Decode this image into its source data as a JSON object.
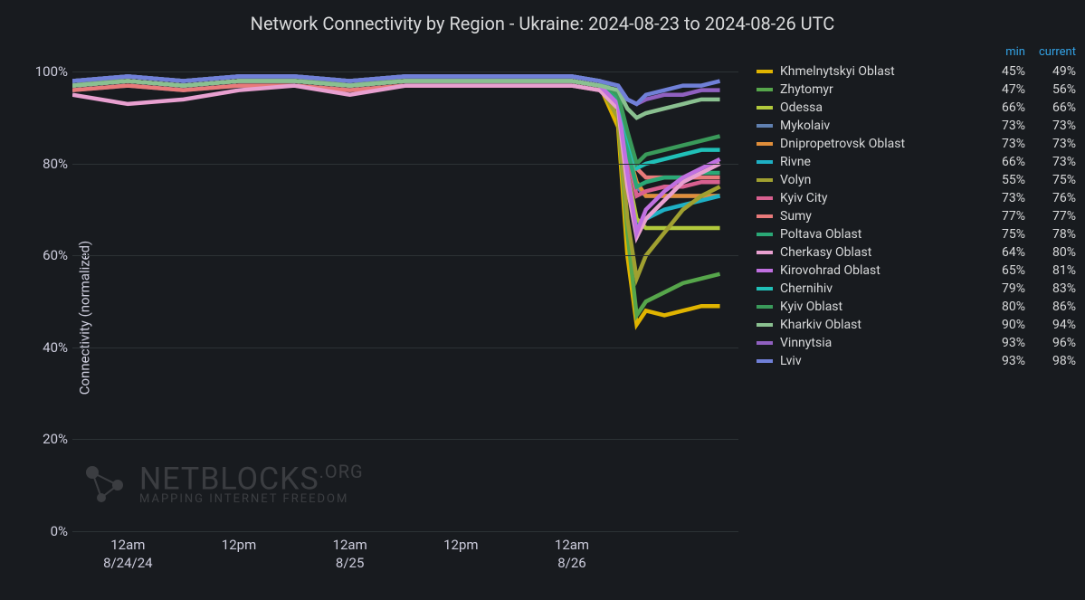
{
  "title": "Network Connectivity by Region - Ukraine: 2024-08-23 to 2024-08-26 UTC",
  "ylabel": "Connectivity (normalized)",
  "background_color": "#181b1f",
  "text_color": "#ccccdc",
  "grid_color": "#2c3235",
  "header_color": "#33a2e5",
  "title_fontsize": 20,
  "tick_fontsize": 15,
  "legend_fontsize": 14,
  "line_width": 1.5,
  "chart": {
    "type": "line",
    "ylim": [
      0,
      105
    ],
    "yticks": [
      0,
      20,
      40,
      60,
      80,
      100
    ],
    "ytick_labels": [
      "0%",
      "20%",
      "40%",
      "60%",
      "80%",
      "100%"
    ],
    "xdomain": [
      0,
      72
    ],
    "xticks": [
      {
        "t": 6,
        "label": "12am",
        "date": "8/24/24"
      },
      {
        "t": 18,
        "label": "12pm",
        "date": ""
      },
      {
        "t": 30,
        "label": "12am",
        "date": "8/25"
      },
      {
        "t": 42,
        "label": "12pm",
        "date": ""
      },
      {
        "t": 54,
        "label": "12am",
        "date": "8/26"
      }
    ]
  },
  "legend_headers": {
    "min": "min",
    "current": "current"
  },
  "watermark": {
    "main": "NETBLOCKS",
    "suffix": ".ORG",
    "sub": "MAPPING INTERNET FREEDOM"
  },
  "series": [
    {
      "name": "Khmelnytskyi Oblast",
      "color": "#e0b400",
      "min": "45%",
      "current": "49%",
      "points": [
        [
          0,
          97
        ],
        [
          6,
          98
        ],
        [
          12,
          97
        ],
        [
          18,
          98
        ],
        [
          24,
          98
        ],
        [
          30,
          97
        ],
        [
          36,
          98
        ],
        [
          42,
          98
        ],
        [
          48,
          98
        ],
        [
          54,
          98
        ],
        [
          57,
          97
        ],
        [
          59,
          88
        ],
        [
          60,
          60
        ],
        [
          61,
          45
        ],
        [
          62,
          48
        ],
        [
          64,
          47
        ],
        [
          66,
          48
        ],
        [
          68,
          49
        ],
        [
          70,
          49
        ]
      ]
    },
    {
      "name": "Zhytomyr",
      "color": "#56a64b",
      "min": "47%",
      "current": "56%",
      "points": [
        [
          0,
          98
        ],
        [
          6,
          98
        ],
        [
          12,
          97
        ],
        [
          18,
          98
        ],
        [
          24,
          98
        ],
        [
          30,
          98
        ],
        [
          36,
          98
        ],
        [
          42,
          98
        ],
        [
          48,
          98
        ],
        [
          54,
          98
        ],
        [
          57,
          97
        ],
        [
          59,
          90
        ],
        [
          60,
          65
        ],
        [
          61,
          47
        ],
        [
          62,
          50
        ],
        [
          64,
          52
        ],
        [
          66,
          54
        ],
        [
          68,
          55
        ],
        [
          70,
          56
        ]
      ]
    },
    {
      "name": "Odessa",
      "color": "#b2c93c",
      "min": "66%",
      "current": "66%",
      "points": [
        [
          0,
          97
        ],
        [
          6,
          98
        ],
        [
          12,
          97
        ],
        [
          18,
          98
        ],
        [
          24,
          98
        ],
        [
          30,
          97
        ],
        [
          36,
          98
        ],
        [
          42,
          98
        ],
        [
          48,
          98
        ],
        [
          54,
          98
        ],
        [
          57,
          97
        ],
        [
          59,
          92
        ],
        [
          60,
          78
        ],
        [
          61,
          68
        ],
        [
          62,
          66
        ],
        [
          64,
          66
        ],
        [
          66,
          66
        ],
        [
          68,
          66
        ],
        [
          70,
          66
        ]
      ]
    },
    {
      "name": "Mykolaiv",
      "color": "#6080b0",
      "min": "73%",
      "current": "73%",
      "points": [
        [
          0,
          96
        ],
        [
          6,
          97
        ],
        [
          12,
          96
        ],
        [
          18,
          97
        ],
        [
          24,
          97
        ],
        [
          30,
          96
        ],
        [
          36,
          97
        ],
        [
          42,
          97
        ],
        [
          48,
          97
        ],
        [
          54,
          97
        ],
        [
          57,
          96
        ],
        [
          59,
          93
        ],
        [
          60,
          82
        ],
        [
          61,
          75
        ],
        [
          62,
          73
        ],
        [
          64,
          73
        ],
        [
          66,
          73
        ],
        [
          68,
          73
        ],
        [
          70,
          73
        ]
      ]
    },
    {
      "name": "Dnipropetrovsk Oblast",
      "color": "#e08e3a",
      "min": "73%",
      "current": "73%",
      "points": [
        [
          0,
          97
        ],
        [
          6,
          98
        ],
        [
          12,
          97
        ],
        [
          18,
          98
        ],
        [
          24,
          98
        ],
        [
          30,
          97
        ],
        [
          36,
          98
        ],
        [
          42,
          98
        ],
        [
          48,
          98
        ],
        [
          54,
          98
        ],
        [
          57,
          97
        ],
        [
          59,
          94
        ],
        [
          60,
          83
        ],
        [
          61,
          76
        ],
        [
          62,
          73
        ],
        [
          64,
          73
        ],
        [
          66,
          73
        ],
        [
          68,
          73
        ],
        [
          70,
          73
        ]
      ]
    },
    {
      "name": "Rivne",
      "color": "#1eb0c4",
      "min": "66%",
      "current": "73%",
      "points": [
        [
          0,
          98
        ],
        [
          6,
          99
        ],
        [
          12,
          98
        ],
        [
          18,
          99
        ],
        [
          24,
          99
        ],
        [
          30,
          98
        ],
        [
          36,
          99
        ],
        [
          42,
          99
        ],
        [
          48,
          99
        ],
        [
          54,
          99
        ],
        [
          57,
          98
        ],
        [
          59,
          93
        ],
        [
          60,
          75
        ],
        [
          61,
          66
        ],
        [
          62,
          68
        ],
        [
          64,
          70
        ],
        [
          66,
          71
        ],
        [
          68,
          72
        ],
        [
          70,
          73
        ]
      ]
    },
    {
      "name": "Volyn",
      "color": "#a0a030",
      "min": "55%",
      "current": "75%",
      "points": [
        [
          0,
          97
        ],
        [
          6,
          98
        ],
        [
          12,
          97
        ],
        [
          18,
          98
        ],
        [
          24,
          98
        ],
        [
          30,
          97
        ],
        [
          36,
          98
        ],
        [
          42,
          98
        ],
        [
          48,
          98
        ],
        [
          54,
          98
        ],
        [
          57,
          97
        ],
        [
          59,
          90
        ],
        [
          60,
          68
        ],
        [
          61,
          55
        ],
        [
          62,
          60
        ],
        [
          64,
          65
        ],
        [
          66,
          70
        ],
        [
          68,
          73
        ],
        [
          70,
          75
        ]
      ]
    },
    {
      "name": "Kyiv City",
      "color": "#d86090",
      "min": "73%",
      "current": "76%",
      "points": [
        [
          0,
          98
        ],
        [
          6,
          99
        ],
        [
          12,
          98
        ],
        [
          18,
          99
        ],
        [
          24,
          99
        ],
        [
          30,
          98
        ],
        [
          36,
          99
        ],
        [
          42,
          99
        ],
        [
          48,
          99
        ],
        [
          54,
          99
        ],
        [
          57,
          98
        ],
        [
          59,
          94
        ],
        [
          60,
          82
        ],
        [
          61,
          73
        ],
        [
          62,
          74
        ],
        [
          64,
          75
        ],
        [
          66,
          75
        ],
        [
          68,
          76
        ],
        [
          70,
          76
        ]
      ]
    },
    {
      "name": "Sumy",
      "color": "#e87a7a",
      "min": "77%",
      "current": "77%",
      "points": [
        [
          0,
          96
        ],
        [
          6,
          97
        ],
        [
          12,
          96
        ],
        [
          18,
          97
        ],
        [
          24,
          97
        ],
        [
          30,
          96
        ],
        [
          36,
          97
        ],
        [
          42,
          97
        ],
        [
          48,
          97
        ],
        [
          54,
          97
        ],
        [
          57,
          96
        ],
        [
          59,
          94
        ],
        [
          60,
          85
        ],
        [
          61,
          79
        ],
        [
          62,
          77
        ],
        [
          64,
          77
        ],
        [
          66,
          77
        ],
        [
          68,
          77
        ],
        [
          70,
          77
        ]
      ]
    },
    {
      "name": "Poltava Oblast",
      "color": "#2aa876",
      "min": "75%",
      "current": "78%",
      "points": [
        [
          0,
          97
        ],
        [
          6,
          98
        ],
        [
          12,
          97
        ],
        [
          18,
          98
        ],
        [
          24,
          98
        ],
        [
          30,
          97
        ],
        [
          36,
          98
        ],
        [
          42,
          98
        ],
        [
          48,
          98
        ],
        [
          54,
          98
        ],
        [
          57,
          97
        ],
        [
          59,
          94
        ],
        [
          60,
          83
        ],
        [
          61,
          75
        ],
        [
          62,
          76
        ],
        [
          64,
          77
        ],
        [
          66,
          77
        ],
        [
          68,
          78
        ],
        [
          70,
          78
        ]
      ]
    },
    {
      "name": "Cherkasy Oblast",
      "color": "#e8a0d0",
      "min": "64%",
      "current": "80%",
      "points": [
        [
          0,
          95
        ],
        [
          6,
          93
        ],
        [
          12,
          94
        ],
        [
          18,
          96
        ],
        [
          24,
          97
        ],
        [
          30,
          95
        ],
        [
          36,
          97
        ],
        [
          42,
          97
        ],
        [
          48,
          97
        ],
        [
          54,
          97
        ],
        [
          57,
          96
        ],
        [
          59,
          92
        ],
        [
          60,
          75
        ],
        [
          61,
          64
        ],
        [
          62,
          68
        ],
        [
          64,
          72
        ],
        [
          66,
          76
        ],
        [
          68,
          78
        ],
        [
          70,
          80
        ]
      ]
    },
    {
      "name": "Kirovohrad Oblast",
      "color": "#c070e0",
      "min": "65%",
      "current": "81%",
      "points": [
        [
          0,
          97
        ],
        [
          6,
          98
        ],
        [
          12,
          97
        ],
        [
          18,
          98
        ],
        [
          24,
          98
        ],
        [
          30,
          97
        ],
        [
          36,
          98
        ],
        [
          42,
          98
        ],
        [
          48,
          98
        ],
        [
          54,
          98
        ],
        [
          57,
          97
        ],
        [
          59,
          93
        ],
        [
          60,
          78
        ],
        [
          61,
          65
        ],
        [
          62,
          70
        ],
        [
          64,
          74
        ],
        [
          66,
          77
        ],
        [
          68,
          79
        ],
        [
          70,
          81
        ]
      ]
    },
    {
      "name": "Chernihiv",
      "color": "#20c0b8",
      "min": "79%",
      "current": "83%",
      "points": [
        [
          0,
          98
        ],
        [
          6,
          99
        ],
        [
          12,
          98
        ],
        [
          18,
          99
        ],
        [
          24,
          99
        ],
        [
          30,
          98
        ],
        [
          36,
          99
        ],
        [
          42,
          99
        ],
        [
          48,
          99
        ],
        [
          54,
          99
        ],
        [
          57,
          98
        ],
        [
          59,
          95
        ],
        [
          60,
          86
        ],
        [
          61,
          79
        ],
        [
          62,
          80
        ],
        [
          64,
          81
        ],
        [
          66,
          82
        ],
        [
          68,
          83
        ],
        [
          70,
          83
        ]
      ]
    },
    {
      "name": "Kyiv Oblast",
      "color": "#3a9a5a",
      "min": "80%",
      "current": "86%",
      "points": [
        [
          0,
          98
        ],
        [
          6,
          99
        ],
        [
          12,
          98
        ],
        [
          18,
          99
        ],
        [
          24,
          99
        ],
        [
          30,
          98
        ],
        [
          36,
          99
        ],
        [
          42,
          99
        ],
        [
          48,
          99
        ],
        [
          54,
          99
        ],
        [
          57,
          98
        ],
        [
          59,
          95
        ],
        [
          60,
          87
        ],
        [
          61,
          80
        ],
        [
          62,
          82
        ],
        [
          64,
          83
        ],
        [
          66,
          84
        ],
        [
          68,
          85
        ],
        [
          70,
          86
        ]
      ]
    },
    {
      "name": "Kharkiv Oblast",
      "color": "#8ac090",
      "min": "90%",
      "current": "94%",
      "points": [
        [
          0,
          97
        ],
        [
          6,
          98
        ],
        [
          12,
          97
        ],
        [
          18,
          98
        ],
        [
          24,
          98
        ],
        [
          30,
          97
        ],
        [
          36,
          98
        ],
        [
          42,
          98
        ],
        [
          48,
          98
        ],
        [
          54,
          98
        ],
        [
          57,
          97
        ],
        [
          59,
          96
        ],
        [
          60,
          92
        ],
        [
          61,
          90
        ],
        [
          62,
          91
        ],
        [
          64,
          92
        ],
        [
          66,
          93
        ],
        [
          68,
          94
        ],
        [
          70,
          94
        ]
      ]
    },
    {
      "name": "Vinnytsia",
      "color": "#9060c0",
      "min": "93%",
      "current": "96%",
      "points": [
        [
          0,
          98
        ],
        [
          6,
          99
        ],
        [
          12,
          98
        ],
        [
          18,
          99
        ],
        [
          24,
          99
        ],
        [
          30,
          98
        ],
        [
          36,
          99
        ],
        [
          42,
          99
        ],
        [
          48,
          99
        ],
        [
          54,
          99
        ],
        [
          57,
          98
        ],
        [
          59,
          97
        ],
        [
          60,
          94
        ],
        [
          61,
          93
        ],
        [
          62,
          94
        ],
        [
          64,
          95
        ],
        [
          66,
          95
        ],
        [
          68,
          96
        ],
        [
          70,
          96
        ]
      ]
    },
    {
      "name": "Lviv",
      "color": "#7080d8",
      "min": "93%",
      "current": "98%",
      "points": [
        [
          0,
          98
        ],
        [
          6,
          99
        ],
        [
          12,
          98
        ],
        [
          18,
          99
        ],
        [
          24,
          99
        ],
        [
          30,
          98
        ],
        [
          36,
          99
        ],
        [
          42,
          99
        ],
        [
          48,
          99
        ],
        [
          54,
          99
        ],
        [
          57,
          98
        ],
        [
          59,
          97
        ],
        [
          60,
          94
        ],
        [
          61,
          93
        ],
        [
          62,
          95
        ],
        [
          64,
          96
        ],
        [
          66,
          97
        ],
        [
          68,
          97
        ],
        [
          70,
          98
        ]
      ]
    }
  ]
}
